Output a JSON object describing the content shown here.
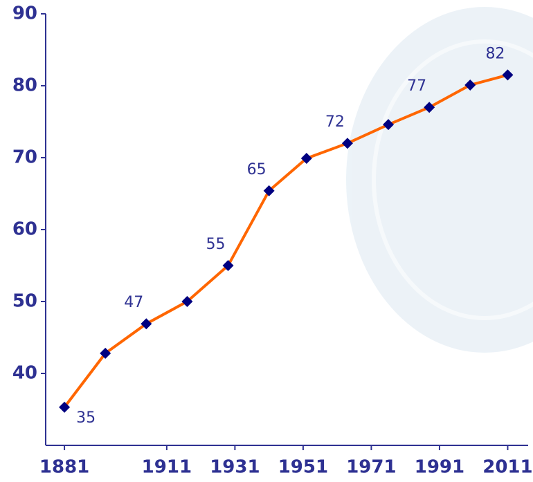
{
  "chart_data": {
    "type": "line",
    "x": [
      1881,
      1893,
      1905,
      1917,
      1929,
      1941,
      1952,
      1964,
      1976,
      1988,
      2000,
      2011
    ],
    "series": [
      {
        "color": "#ff6600",
        "marker_color": "#000080",
        "values": [
          35.3,
          42.8,
          46.9,
          50,
          55,
          65.4,
          69.9,
          72,
          74.6,
          77,
          80.1,
          81.5
        ],
        "value_labels": [
          "35",
          null,
          "47",
          null,
          "55",
          "65",
          null,
          "72",
          null,
          "77",
          null,
          "82"
        ]
      }
    ],
    "xlim": [
      1875.5,
      2017
    ],
    "xticks": [
      1881,
      1911,
      1931,
      1951,
      1971,
      1991,
      2011
    ],
    "ylim": [
      30,
      90
    ],
    "yticks": [
      40,
      50,
      60,
      70,
      80,
      90
    ]
  }
}
